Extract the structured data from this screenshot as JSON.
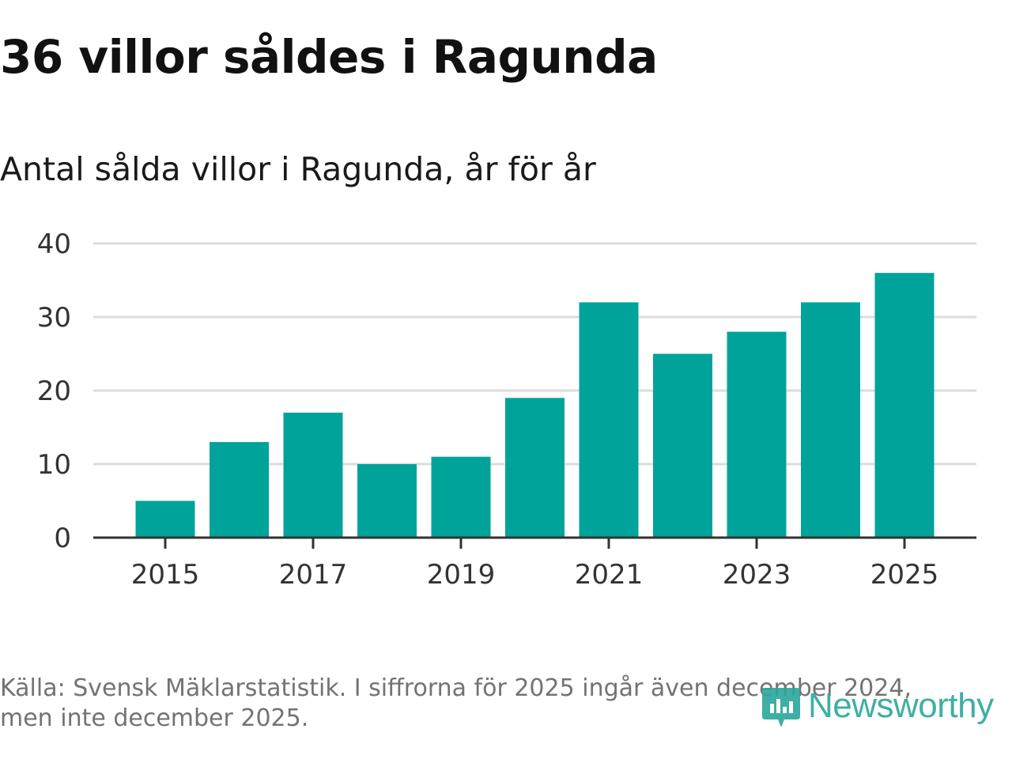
{
  "title": "36 villor såldes i Ragunda",
  "subtitle": "Antal sålda villor i Ragunda, år för år",
  "chart_data": {
    "type": "bar",
    "title": "36 villor såldes i Ragunda",
    "subtitle": "Antal sålda villor i Ragunda, år för år",
    "categories": [
      "2015",
      "2016",
      "2017",
      "2018",
      "2019",
      "2020",
      "2021",
      "2022",
      "2023",
      "2024",
      "2025"
    ],
    "values": [
      5,
      13,
      17,
      10,
      11,
      19,
      32,
      25,
      28,
      32,
      36
    ],
    "x_tick_labels": [
      "2015",
      "2017",
      "2019",
      "2021",
      "2023",
      "2025"
    ],
    "y_ticks": [
      0,
      10,
      20,
      30,
      40
    ],
    "ylim": [
      0,
      40
    ],
    "xlabel": "",
    "ylabel": "",
    "grid": true,
    "bar_color": "#00a39a"
  },
  "footer": {
    "line1": "Källa: Svensk Mäklarstatistik. I siffrorna för 2025 ingår även december 2024,",
    "line2": "men inte december 2025."
  },
  "logo": {
    "text": "Newsworthy",
    "icon": "newsworthy-logo-icon",
    "color": "#2aa79b"
  }
}
